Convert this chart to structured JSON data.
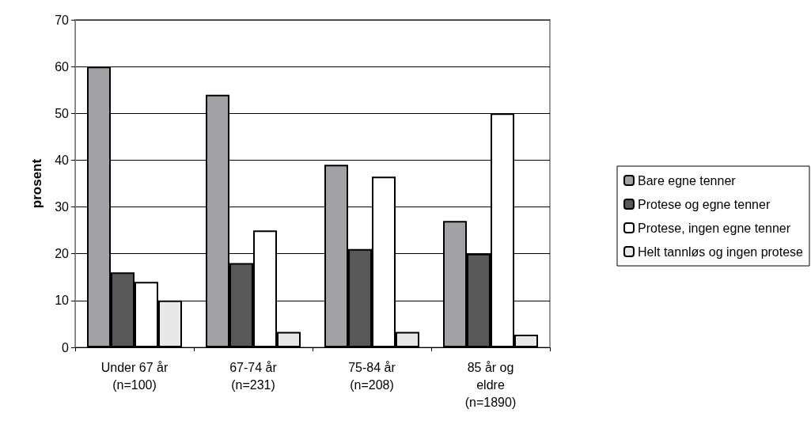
{
  "chart_data": {
    "type": "bar",
    "ylabel": "prosent",
    "categories": [
      "Under 67 år\n(n=100)",
      "67-74 år\n(n=231)",
      "75-84 år\n(n=208)",
      "85 år og\neldre\n(n=1890)"
    ],
    "series": [
      {
        "name": "Bare egne tenner",
        "color": "#a2a1a6",
        "values": [
          60,
          54,
          39,
          27
        ]
      },
      {
        "name": "Protese og egne tenner",
        "color": "#585858",
        "values": [
          16,
          18,
          21,
          20
        ]
      },
      {
        "name": "Protese, ingen egne tenner",
        "color": "#ffffff",
        "values": [
          14,
          25,
          36.5,
          50
        ]
      },
      {
        "name": "Helt tannløs og ingen protese",
        "color": "#e8e8e8",
        "values": [
          10,
          3.3,
          3.3,
          2.7
        ]
      }
    ],
    "ylim": [
      0,
      70
    ],
    "yticks": [
      0,
      10,
      20,
      30,
      40,
      50,
      60,
      70
    ],
    "grid": "y",
    "legend": "right"
  }
}
